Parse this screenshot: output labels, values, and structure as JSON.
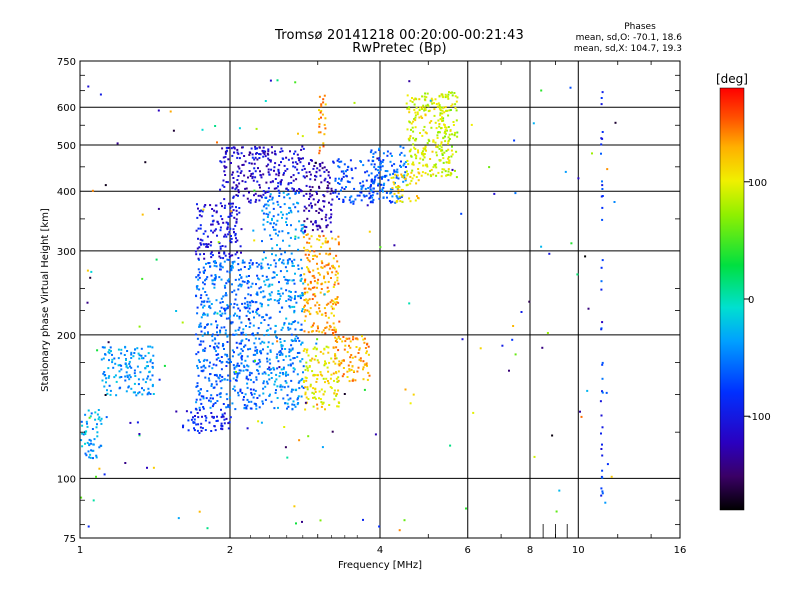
{
  "title": {
    "line1": "Tromsø 20141218 00:20:00-00:21:43",
    "line2": "RwPretec (Bp)"
  },
  "stats": {
    "heading": "Phases",
    "o_line": "mean, sd,O: -70.1, 18.6",
    "x_line": "mean, sd,X: 104.7, 19.3"
  },
  "colorbar": {
    "label": "[deg]",
    "ticks": [
      "100",
      "0",
      "-100"
    ],
    "tick_values": [
      100,
      0,
      -100
    ],
    "range": [
      -180,
      180
    ]
  },
  "chart_data": {
    "type": "scatter",
    "xlabel": "Frequency [MHz]",
    "ylabel": "Stationary phase Virtual Height [km]",
    "xscale": "log",
    "yscale": "log",
    "xlim": [
      1,
      16
    ],
    "ylim": [
      75,
      750
    ],
    "grid": true,
    "x_ticks": [
      1,
      2,
      4,
      6,
      8,
      10,
      16
    ],
    "x_tick_labels": [
      "1",
      "2",
      "4",
      "6",
      "8",
      "10",
      "16"
    ],
    "y_ticks": [
      75,
      100,
      200,
      300,
      400,
      500,
      600,
      750
    ],
    "y_tick_labels": [
      "75",
      "100",
      "200",
      "300",
      "400",
      "500",
      "600",
      "750"
    ],
    "clusters": [
      {
        "x": [
          1.6,
          2.0
        ],
        "y": [
          125,
          140
        ],
        "phase": -95
      },
      {
        "x": [
          1.7,
          2.3
        ],
        "y": [
          140,
          200
        ],
        "phase": -60
      },
      {
        "x": [
          1.7,
          2.3
        ],
        "y": [
          200,
          290
        ],
        "phase": -55
      },
      {
        "x": [
          1.7,
          2.1
        ],
        "y": [
          290,
          380
        ],
        "phase": -105
      },
      {
        "x": [
          1.9,
          2.4
        ],
        "y": [
          380,
          500
        ],
        "phase": -115
      },
      {
        "x": [
          2.3,
          2.8
        ],
        "y": [
          140,
          400
        ],
        "phase": -45
      },
      {
        "x": [
          2.4,
          2.8
        ],
        "y": [
          400,
          500
        ],
        "phase": -110
      },
      {
        "x": [
          2.8,
          3.2
        ],
        "y": [
          330,
          470
        ],
        "phase": -125
      },
      {
        "x": [
          2.8,
          3.3
        ],
        "y": [
          200,
          330
        ],
        "phase": 130
      },
      {
        "x": [
          3.0,
          3.1
        ],
        "y": [
          470,
          650
        ],
        "phase": 135
      },
      {
        "x": [
          2.8,
          3.3
        ],
        "y": [
          140,
          190
        ],
        "phase": 105
      },
      {
        "x": [
          3.2,
          3.8
        ],
        "y": [
          160,
          200
        ],
        "phase": 130
      },
      {
        "x": [
          3.2,
          3.9
        ],
        "y": [
          380,
          470
        ],
        "phase": -70
      },
      {
        "x": [
          3.8,
          4.5
        ],
        "y": [
          380,
          500
        ],
        "phase": -60
      },
      {
        "x": [
          4.2,
          4.8
        ],
        "y": [
          380,
          440
        ],
        "phase": 110
      },
      {
        "x": [
          4.5,
          5.5
        ],
        "y": [
          430,
          650
        ],
        "phase": 95
      },
      {
        "x": [
          5.2,
          5.7
        ],
        "y": [
          430,
          650
        ],
        "phase": 85
      },
      {
        "x": [
          1.0,
          1.1
        ],
        "y": [
          110,
          140
        ],
        "phase": -35
      },
      {
        "x": [
          1.1,
          1.4
        ],
        "y": [
          150,
          190
        ],
        "phase": -40
      }
    ]
  }
}
